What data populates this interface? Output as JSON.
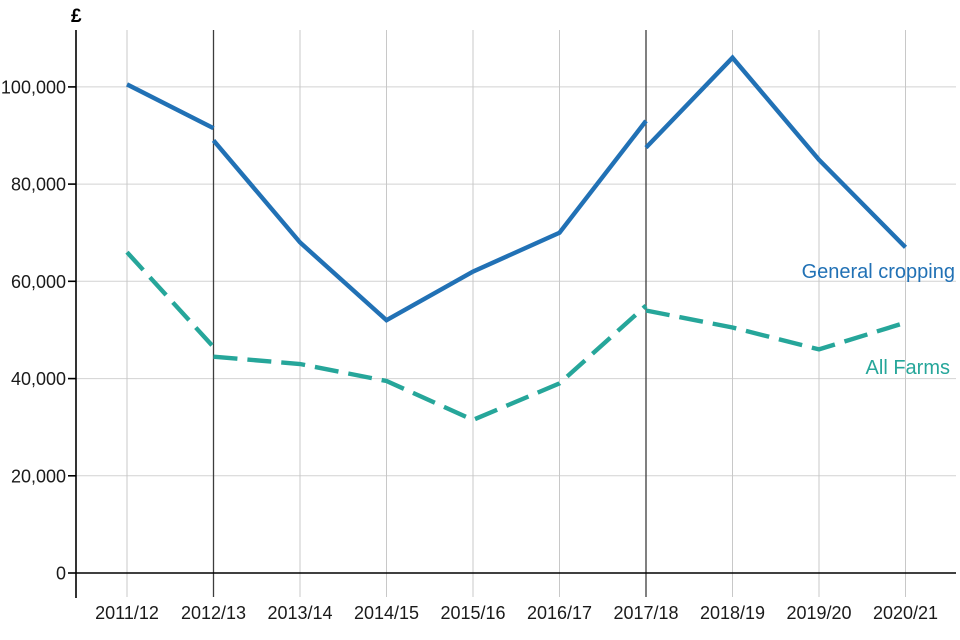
{
  "chart_data": {
    "type": "line",
    "y_axis": {
      "unit_label": "£",
      "tick_values": [
        0,
        20000,
        40000,
        60000,
        80000,
        100000
      ],
      "tick_labels": [
        "0",
        "20,000",
        "40,000",
        "60,000",
        "80,000",
        "100,000"
      ],
      "ylim": [
        0,
        111700
      ],
      "grid": true
    },
    "x_axis": {
      "categories": [
        "2011/12",
        "2012/13",
        "2013/14",
        "2014/15",
        "2015/16",
        "2016/17",
        "2017/18",
        "2018/19",
        "2019/20",
        "2020/21"
      ],
      "grid": true
    },
    "reference_lines": {
      "at_categories": [
        "2012/13",
        "2017/18"
      ],
      "color": "#3d3d3d"
    },
    "series": [
      {
        "name": "General cropping",
        "color": "#2171b5",
        "line_style": "solid",
        "segments": [
          {
            "start_index": 0,
            "values": [
              100500,
              91500
            ]
          },
          {
            "start_index": 1,
            "values": [
              89000,
              68000,
              52000,
              62000,
              70000,
              93000
            ]
          },
          {
            "start_index": 6,
            "values": [
              87500,
              106000,
              85000,
              67000
            ]
          }
        ]
      },
      {
        "name": "All Farms",
        "color": "#26a69a",
        "line_style": "dashed",
        "segments": [
          {
            "start_index": 0,
            "values": [
              66000,
              46500
            ]
          },
          {
            "start_index": 1,
            "values": [
              44500,
              43000,
              39500,
              31500,
              39000,
              55000
            ]
          },
          {
            "start_index": 6,
            "values": [
              54000,
              50500,
              46000,
              51500
            ]
          }
        ]
      }
    ],
    "style_colors": {
      "axis": "#000000",
      "h_gridline": "#d2d2d2",
      "v_gridline": "#c8c8c8",
      "tick_text": "#1a1a1a"
    }
  }
}
